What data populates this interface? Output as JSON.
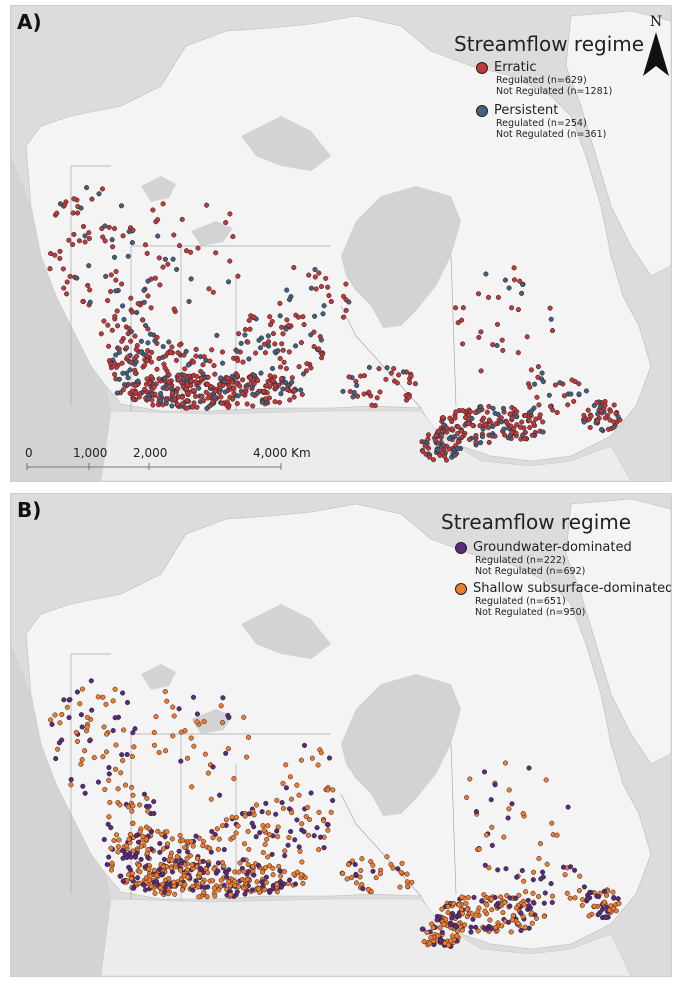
{
  "panels": [
    {
      "label": "A)",
      "legend": {
        "title": "Streamflow regime",
        "items": [
          {
            "name": "Erratic",
            "color": "#c0393b",
            "regulated": "Regulated (n=629)",
            "not_regulated": "Not Regulated (n=1281)"
          },
          {
            "name": "Persistent",
            "color": "#44607f",
            "regulated": "Regulated (n=254)",
            "not_regulated": "Not Regulated (n=361)"
          }
        ]
      },
      "north_arrow": "N",
      "scale_bar": {
        "ticks": [
          "0",
          "1,000",
          "2,000",
          "4,000 Km"
        ]
      }
    },
    {
      "label": "B)",
      "legend": {
        "title": "Streamflow regime",
        "items": [
          {
            "name": "Groundwater-dominated",
            "color": "#5b2a7f",
            "regulated": "Regulated (n=222)",
            "not_regulated": "Not Regulated (n=692)"
          },
          {
            "name": "Shallow subsurface-dominated",
            "color": "#f07a2e",
            "regulated": "Regulated (n=651)",
            "not_regulated": "Not Regulated (n=950)"
          }
        ]
      }
    }
  ],
  "colors": {
    "land": "#f4f4f4",
    "water": "#d3d3d3",
    "border": "#a8a8a8"
  }
}
